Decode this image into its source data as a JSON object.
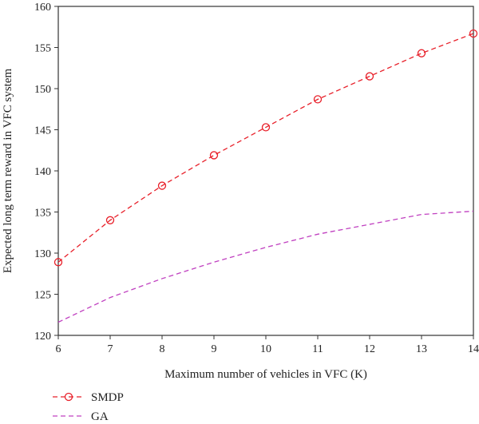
{
  "chart_data": {
    "type": "line",
    "title": "",
    "xlabel": "Maximum number of vehicles in VFC (K)",
    "ylabel": "Expected long term reward in VFC system",
    "xlim": [
      6,
      14
    ],
    "ylim": [
      120,
      160
    ],
    "x_ticks": [
      6,
      7,
      8,
      9,
      10,
      11,
      12,
      13,
      14
    ],
    "y_ticks": [
      120,
      125,
      130,
      135,
      140,
      145,
      150,
      155,
      160
    ],
    "grid": false,
    "legend_position": "bottom-left, below plot",
    "series": [
      {
        "name": "SMDP",
        "color": "#e8202a",
        "line_style": "dashed",
        "marker": "open-circle",
        "x": [
          6,
          7,
          8,
          9,
          10,
          11,
          12,
          13,
          14
        ],
        "y": [
          128.9,
          134.0,
          138.2,
          141.9,
          145.3,
          148.7,
          151.5,
          154.3,
          156.7
        ]
      },
      {
        "name": "GA",
        "color": "#c040c0",
        "line_style": "dashed",
        "marker": "none",
        "x": [
          6,
          7,
          8,
          9,
          10,
          11,
          12,
          13,
          14
        ],
        "y": [
          121.6,
          124.6,
          126.9,
          128.9,
          130.7,
          132.3,
          133.5,
          134.7,
          135.1
        ]
      }
    ]
  }
}
